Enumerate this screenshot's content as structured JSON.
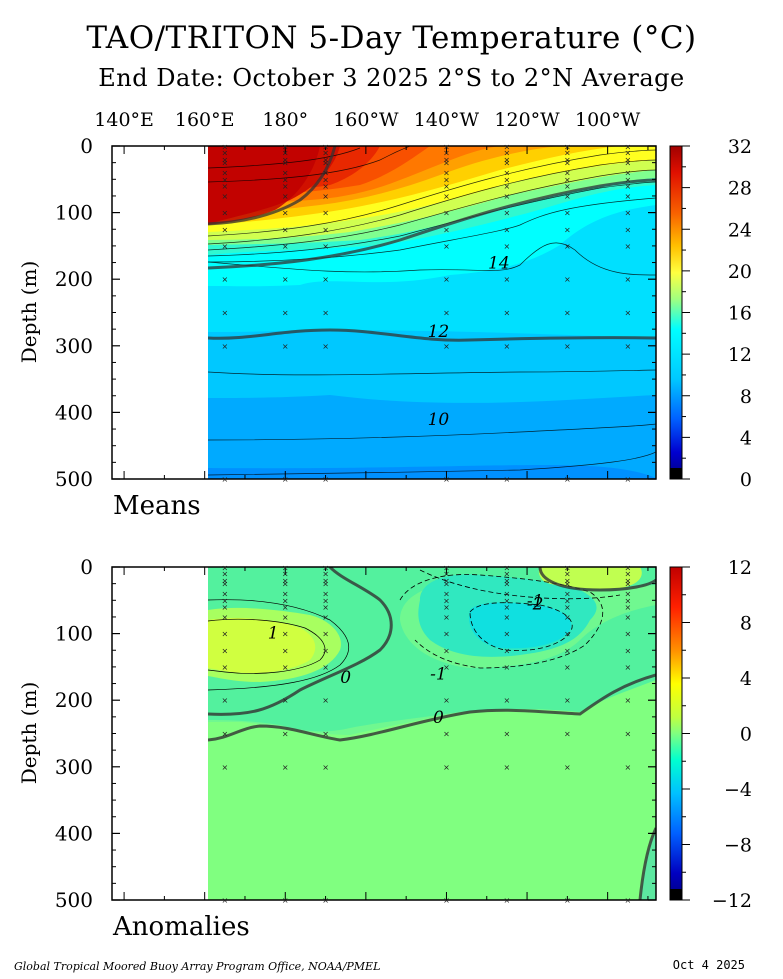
{
  "title": "TAO/TRITON 5-Day Temperature (°C)",
  "subtitle": "End Date: October 3 2025  2°S to 2°N Average",
  "footer_left": "Global Tropical Moored Buoy Array Program Office, NOAA/PMEL",
  "footer_right": "Oct  4 2025",
  "chart_data": [
    {
      "type": "heatmap",
      "name": "Means",
      "x_tick_labels": [
        "140°E",
        "160°E",
        "180°",
        "160°W",
        "140°W",
        "120°W",
        "100°W"
      ],
      "x_ticks": [
        140,
        160,
        180,
        200,
        220,
        240,
        260
      ],
      "xlim": [
        137,
        272
      ],
      "data_xlim": [
        160,
        266
      ],
      "ylabel": "Depth (m)",
      "ylim": [
        0,
        500
      ],
      "y_ticks": [
        0,
        100,
        200,
        300,
        400,
        500
      ],
      "colorbar_ticks": [
        32,
        28,
        24,
        20,
        16,
        12,
        8,
        4,
        0
      ],
      "colorbar_range": [
        0,
        32
      ],
      "contour_labels": [
        {
          "text": "14",
          "lon": 233,
          "depth": 175
        },
        {
          "text": "12",
          "lon": 218,
          "depth": 278
        },
        {
          "text": "10",
          "lon": 218,
          "depth": 410
        }
      ],
      "buoy_lons": [
        165,
        180,
        190,
        220,
        235,
        250,
        265
      ]
    },
    {
      "type": "heatmap",
      "name": "Anomalies",
      "x_tick_labels": [
        "140°E",
        "160°E",
        "180°",
        "160°W",
        "140°W",
        "120°W",
        "100°W"
      ],
      "x_ticks": [
        140,
        160,
        180,
        200,
        220,
        240,
        260
      ],
      "xlim": [
        137,
        272
      ],
      "data_xlim": [
        160,
        266
      ],
      "ylabel": "Depth (m)",
      "ylim": [
        0,
        500
      ],
      "y_ticks": [
        0,
        100,
        200,
        300,
        400,
        500
      ],
      "colorbar_ticks": [
        12,
        8,
        4,
        0,
        -4,
        -8,
        -12
      ],
      "colorbar_range": [
        -12,
        12
      ],
      "contour_labels": [
        {
          "text": "1",
          "lon": 177,
          "depth": 98
        },
        {
          "text": "0",
          "lon": 195,
          "depth": 165
        },
        {
          "text": "0",
          "lon": 218,
          "depth": 225
        },
        {
          "text": "-1",
          "lon": 218,
          "depth": 160
        },
        {
          "text": "-1",
          "lon": 242,
          "depth": 50
        },
        {
          "text": "-2",
          "lon": 242,
          "depth": 55
        }
      ],
      "buoy_lons": [
        165,
        180,
        190,
        220,
        235,
        250,
        265
      ]
    }
  ]
}
